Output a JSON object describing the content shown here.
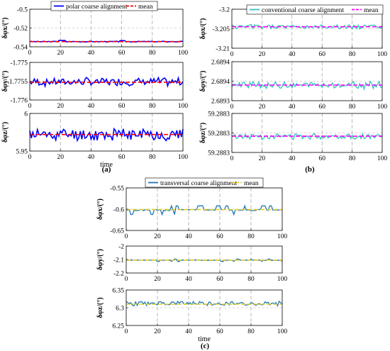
{
  "panel_labels": [
    "(a)",
    "(b)",
    "(c)"
  ],
  "colors": {
    "polar": "#0000ff",
    "conventional": "#33c2c2",
    "transversal": "#1f77b4",
    "mean_red": "#ff0000",
    "mean_magenta": "#ff00ff",
    "mean_yellow": "#e8d030"
  },
  "chart_data": [
    {
      "type": "line",
      "id": "a1",
      "panel": "(a)",
      "ylabel": "δφx/(°)",
      "xlabel": "",
      "xlim": [
        0,
        100
      ],
      "ylim": [
        -0.54,
        -0.5
      ],
      "xticks": [
        "0",
        "20",
        "40",
        "60",
        "80",
        "100"
      ],
      "yticks": [
        "-0.5",
        "-0.52",
        "-0.54"
      ],
      "legend": [
        "polar coarse alignment",
        "mean"
      ],
      "series": [
        {
          "name": "polar coarse alignment",
          "base": -0.5345,
          "amp": 0.0015,
          "seed": 3,
          "style": "flat"
        },
        {
          "name": "mean",
          "constant": -0.5345
        }
      ]
    },
    {
      "type": "line",
      "id": "a2",
      "panel": "(a)",
      "ylabel": "δφy/(°)",
      "xlabel": "",
      "xlim": [
        0,
        100
      ],
      "ylim": [
        -1.776,
        -1.775
      ],
      "xticks": [
        "0",
        "20",
        "40",
        "60",
        "80",
        "100"
      ],
      "yticks": [
        "-1.775",
        "-1.7755",
        "-1.776"
      ],
      "series": [
        {
          "name": "polar coarse alignment",
          "base": -1.77552,
          "amp": 0.00013,
          "seed": 7,
          "style": "wild"
        },
        {
          "name": "mean",
          "constant": -1.77553
        }
      ]
    },
    {
      "type": "line",
      "id": "a3",
      "panel": "(a)",
      "ylabel": "δφz/(°)",
      "xlabel": "time",
      "xlim": [
        0,
        100
      ],
      "ylim": [
        5.95,
        6.0
      ],
      "xticks": [
        "0",
        "20",
        "40",
        "60",
        "80",
        "100"
      ],
      "yticks": [
        "6",
        "5.95"
      ],
      "series": [
        {
          "name": "polar coarse alignment",
          "base": 5.972,
          "amp": 0.01,
          "seed": 11,
          "style": "wild"
        },
        {
          "name": "mean",
          "constant": 5.972
        }
      ]
    },
    {
      "type": "line",
      "id": "b1",
      "panel": "(b)",
      "ylabel": "δφx/(°)",
      "xlabel": "",
      "xlim": [
        0,
        100
      ],
      "ylim": [
        -3.21,
        -3.2
      ],
      "xticks": [
        "0",
        "20",
        "40",
        "60",
        "80",
        "100"
      ],
      "yticks": [
        "-3.2",
        "-3.205",
        "-3.21"
      ],
      "legend": [
        "conventional coarse alignment",
        "mean"
      ],
      "series": [
        {
          "name": "conventional coarse alignment",
          "base": -3.2045,
          "amp": 0.0007,
          "seed": 5,
          "style": "wild"
        },
        {
          "name": "mean",
          "constant": -3.2045
        }
      ]
    },
    {
      "type": "line",
      "id": "b2",
      "panel": "(b)",
      "ylabel": "δφy/(°)",
      "xlabel": "",
      "xlim": [
        0,
        100
      ],
      "ylim": [
        2.6893,
        2.6895
      ],
      "xticks": [
        "0",
        "20",
        "40",
        "60",
        "80",
        "100"
      ],
      "yticks": [
        "2.6894",
        "2.6894",
        "2.6893"
      ],
      "series": [
        {
          "name": "conventional coarse alignment",
          "base": 2.68938,
          "amp": 2.2e-05,
          "seed": 9,
          "style": "wild"
        },
        {
          "name": "mean",
          "constant": 2.68938
        }
      ]
    },
    {
      "type": "line",
      "id": "b3",
      "panel": "(b)",
      "ylabel": "δφz/(°)",
      "xlabel": "",
      "xlim": [
        0,
        100
      ],
      "ylim": [
        59.28827,
        59.28833
      ],
      "xticks": [
        "0",
        "20",
        "40",
        "60",
        "80",
        "100"
      ],
      "yticks": [
        "59.2883",
        "59.2883",
        "59.2883"
      ],
      "series": [
        {
          "name": "conventional coarse alignment",
          "base": 59.288295,
          "amp": 5.5e-06,
          "seed": 13,
          "style": "wild"
        },
        {
          "name": "mean",
          "constant": 59.288295
        }
      ]
    },
    {
      "type": "line",
      "id": "c1",
      "panel": "(c)",
      "ylabel": "δφx/(°)",
      "xlabel": "",
      "xlim": [
        0,
        100
      ],
      "ylim": [
        -0.65,
        -0.55
      ],
      "xticks": [
        "0",
        "20",
        "40",
        "60",
        "80",
        "100"
      ],
      "yticks": [
        "-0.55",
        "-0.6",
        "-0.65"
      ],
      "legend": [
        "transversal coarse alignment",
        "mean"
      ],
      "series": [
        {
          "name": "transversal coarse alignment",
          "base": -0.602,
          "amp": 0.007,
          "seed": 17,
          "style": "step"
        },
        {
          "name": "mean",
          "constant": -0.601
        }
      ]
    },
    {
      "type": "line",
      "id": "c2",
      "panel": "(c)",
      "ylabel": "δφy/(°)",
      "xlabel": "",
      "xlim": [
        0,
        100
      ],
      "ylim": [
        -2.2,
        -2.0
      ],
      "xticks": [
        "0",
        "20",
        "40",
        "60",
        "80",
        "100"
      ],
      "yticks": [
        "-2",
        "-2.1",
        "-2.2"
      ],
      "series": [
        {
          "name": "transversal coarse alignment",
          "base": -2.105,
          "amp": 0.006,
          "seed": 19,
          "style": "step"
        },
        {
          "name": "mean",
          "constant": -2.105
        }
      ]
    },
    {
      "type": "line",
      "id": "c3",
      "panel": "(c)",
      "ylabel": "δφz/(°)",
      "xlabel": "time",
      "xlim": [
        0,
        100
      ],
      "ylim": [
        6.25,
        6.35
      ],
      "xticks": [
        "0",
        "20",
        "40",
        "60",
        "80",
        "100"
      ],
      "yticks": [
        "6.35",
        "6.3",
        "6.25"
      ],
      "series": [
        {
          "name": "transversal coarse alignment",
          "base": 6.312,
          "amp": 0.008,
          "seed": 23,
          "style": "wild"
        },
        {
          "name": "mean",
          "constant": 6.31
        }
      ]
    }
  ]
}
